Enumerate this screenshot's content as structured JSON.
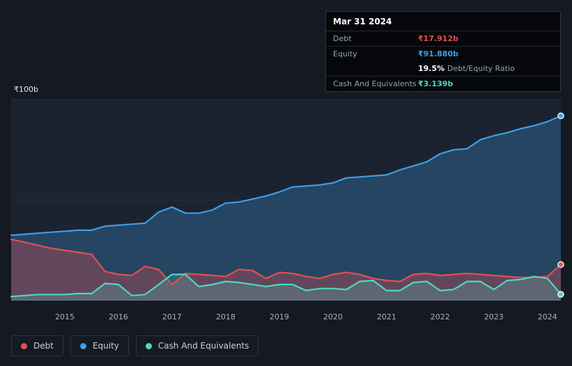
{
  "colors": {
    "debt": "#e34f4f",
    "equity": "#3d9fe8",
    "cash": "#4fd8c2",
    "grid": "#2a313d",
    "baseline": "#434c59",
    "plot_bg": "#1c2330"
  },
  "axis": {
    "y_top": "₹100b",
    "y_zero": "₹0"
  },
  "tooltip": {
    "date": "Mar 31 2024",
    "debt_label": "Debt",
    "debt_value": "₹17.912b",
    "equity_label": "Equity",
    "equity_value": "₹91.880b",
    "ratio_value": "19.5%",
    "ratio_label": "Debt/Equity Ratio",
    "cash_label": "Cash And Equivalents",
    "cash_value": "₹3.139b"
  },
  "legend": [
    {
      "label": "Debt",
      "color_key": "debt"
    },
    {
      "label": "Equity",
      "color_key": "equity"
    },
    {
      "label": "Cash And Equivalents",
      "color_key": "cash"
    }
  ],
  "chart_data": {
    "type": "area",
    "ylim": [
      0,
      100
    ],
    "y_unit": "₹b",
    "x_ticks": [
      "2015",
      "2016",
      "2017",
      "2018",
      "2019",
      "2020",
      "2021",
      "2022",
      "2023",
      "2024"
    ],
    "x": [
      2014.0,
      2014.25,
      2014.5,
      2014.75,
      2015.0,
      2015.25,
      2015.5,
      2015.75,
      2016.0,
      2016.25,
      2016.5,
      2016.75,
      2017.0,
      2017.25,
      2017.5,
      2017.75,
      2018.0,
      2018.25,
      2018.5,
      2018.75,
      2019.0,
      2019.25,
      2019.5,
      2019.75,
      2020.0,
      2020.25,
      2020.5,
      2020.75,
      2021.0,
      2021.25,
      2021.5,
      2021.75,
      2022.0,
      2022.25,
      2022.5,
      2022.75,
      2023.0,
      2023.25,
      2023.5,
      2023.75,
      2024.0,
      2024.25
    ],
    "series": [
      {
        "name": "Equity",
        "color_key": "equity",
        "values": [
          32.5,
          33,
          33.5,
          34,
          34.5,
          35,
          35,
          37,
          37.5,
          38,
          38.5,
          44,
          46.5,
          43.5,
          43.5,
          45,
          48.5,
          49,
          50.5,
          52,
          54,
          56.5,
          57,
          57.5,
          58.5,
          61,
          61.5,
          62,
          62.5,
          65,
          67,
          69,
          73,
          75,
          75.5,
          80,
          82,
          83.5,
          85.5,
          87,
          89,
          91.88
        ]
      },
      {
        "name": "Debt",
        "color_key": "debt",
        "values": [
          30.5,
          29,
          27.5,
          26,
          25,
          24,
          23,
          14.5,
          13,
          12.5,
          17,
          15.5,
          8,
          13.5,
          13,
          12.5,
          12,
          15.5,
          15,
          11,
          14,
          13.5,
          12,
          11,
          13,
          14,
          13,
          11,
          10,
          9.5,
          13,
          13.5,
          12.5,
          13,
          13.5,
          13,
          12.5,
          12,
          11.5,
          11.5,
          12,
          17.912
        ]
      },
      {
        "name": "Cash And Equivalents",
        "color_key": "cash",
        "values": [
          2,
          2.5,
          3,
          3,
          3,
          3.5,
          3.5,
          8.5,
          8,
          2.5,
          3,
          8,
          13,
          13,
          7,
          8,
          9.5,
          9,
          8,
          7,
          8,
          8,
          5,
          6,
          6,
          5.5,
          9.5,
          10,
          5,
          5,
          9,
          9.5,
          5,
          5.5,
          9.5,
          9.5,
          5.5,
          10,
          10.5,
          12,
          11,
          3.139
        ]
      }
    ]
  }
}
